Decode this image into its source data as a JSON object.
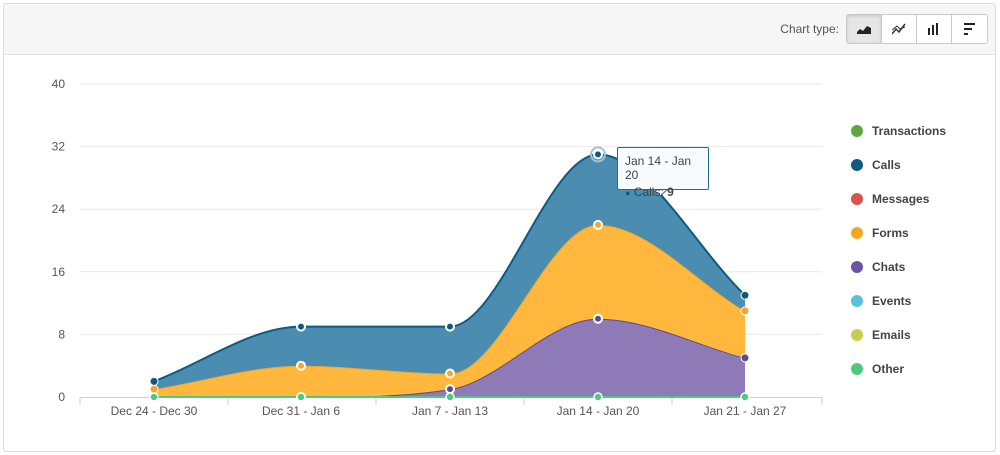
{
  "toolbar": {
    "chart_type_label": "Chart type:",
    "buttons": [
      {
        "icon": "area-chart-icon",
        "active": true
      },
      {
        "icon": "line-chart-icon",
        "active": false
      },
      {
        "icon": "bar-chart-icon",
        "active": false
      },
      {
        "icon": "horizontal-bar-chart-icon",
        "active": false
      }
    ]
  },
  "tooltip": {
    "title": "Jan 14 - Jan 20",
    "series": "Calls",
    "value": "9"
  },
  "chart_data": {
    "type": "area",
    "stacked": true,
    "categories": [
      "Dec 24 - Dec 30",
      "Dec 31 - Jan 6",
      "Jan 7 - Jan 13",
      "Jan 14 - Jan 20",
      "Jan 21 - Jan 27"
    ],
    "ylim": [
      0,
      40
    ],
    "yticks": [
      0,
      8,
      16,
      24,
      32,
      40
    ],
    "grid": true,
    "legend_position": "right",
    "series": [
      {
        "name": "Transactions",
        "color": "#5fa540",
        "values": [
          0,
          0,
          0,
          0,
          0
        ]
      },
      {
        "name": "Calls",
        "color": "#0f5a83",
        "values": [
          1,
          5,
          6,
          9,
          2
        ]
      },
      {
        "name": "Messages",
        "color": "#d9534f",
        "values": [
          0,
          0,
          0,
          0,
          0
        ]
      },
      {
        "name": "Forms",
        "color": "#f5a623",
        "values": [
          1,
          4,
          2,
          12,
          6
        ]
      },
      {
        "name": "Chats",
        "color": "#6a55a4",
        "values": [
          0,
          0,
          1,
          10,
          5
        ]
      },
      {
        "name": "Events",
        "color": "#5bc0de",
        "values": [
          0,
          0,
          0,
          0,
          0
        ]
      },
      {
        "name": "Emails",
        "color": "#c8cc4f",
        "values": [
          0,
          0,
          0,
          0,
          0
        ]
      },
      {
        "name": "Other",
        "color": "#4ec97f",
        "values": [
          0,
          0,
          0,
          0,
          0
        ]
      }
    ]
  }
}
